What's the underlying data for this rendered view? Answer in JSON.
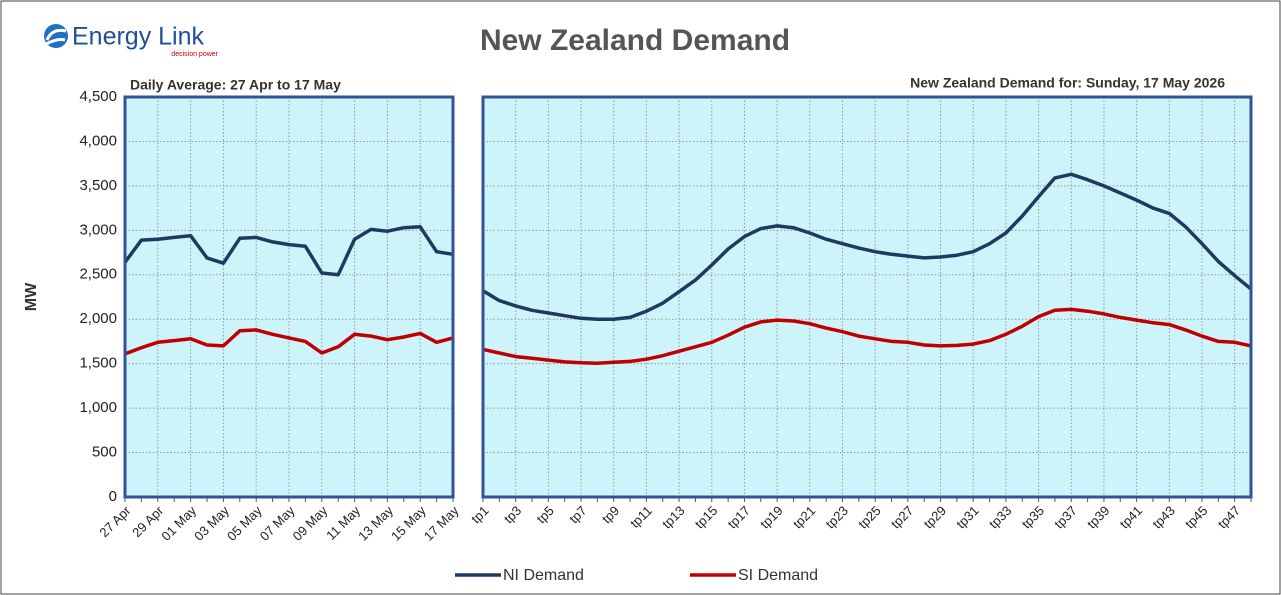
{
  "header": {
    "logo": "Energy Link",
    "tagline": "decision power",
    "title": "New Zealand Demand"
  },
  "chart_data": [
    {
      "type": "line",
      "subtitle": "Daily Average: 27 Apr to 17 May",
      "y_label": "MW",
      "categories": [
        "27 Apr",
        null,
        "29 Apr",
        null,
        "01 May",
        null,
        "03 May",
        null,
        "05 May",
        null,
        "07 May",
        null,
        "09 May",
        null,
        "11 May",
        null,
        "13 May",
        null,
        "15 May",
        null,
        "17 May"
      ],
      "series": [
        {
          "name": "NI Demand",
          "color": "#1f3a5f",
          "values": [
            2640,
            2890,
            2900,
            2920,
            2940,
            2690,
            2630,
            2910,
            2920,
            2870,
            2840,
            2820,
            2520,
            2500,
            2900,
            3010,
            2990,
            3030,
            3040,
            2760,
            2730
          ]
        },
        {
          "name": "SI Demand",
          "color": "#c00000",
          "values": [
            1610,
            1680,
            1740,
            1760,
            1780,
            1710,
            1700,
            1870,
            1880,
            1830,
            1790,
            1750,
            1620,
            1690,
            1830,
            1810,
            1770,
            1800,
            1840,
            1740,
            1790
          ]
        }
      ],
      "ylim": [
        0,
        4500
      ],
      "yticks": [
        0,
        500,
        {
          "value": 1000,
          "label": "1,000"
        },
        {
          "value": 1500,
          "label": "1,500"
        },
        {
          "value": 2000,
          "label": "2,000"
        },
        {
          "value": 2500,
          "label": "2,500"
        },
        {
          "value": 3000,
          "label": "3,000"
        },
        {
          "value": 3500,
          "label": "3,500"
        },
        {
          "value": 4000,
          "label": "4,000"
        },
        {
          "value": 4500,
          "label": "4,500"
        }
      ],
      "grid": true
    },
    {
      "type": "line",
      "subtitle": "New Zealand Demand for: Sunday, 17 May 2026",
      "categories": [
        "tp1",
        null,
        "tp3",
        null,
        "tp5",
        null,
        "tp7",
        null,
        "tp9",
        null,
        "tp11",
        null,
        "tp13",
        null,
        "tp15",
        null,
        "tp17",
        null,
        "tp19",
        null,
        "tp21",
        null,
        "tp23",
        null,
        "tp25",
        null,
        "tp27",
        null,
        "tp29",
        null,
        "tp31",
        null,
        "tp33",
        null,
        "tp35",
        null,
        "tp37",
        null,
        "tp39",
        null,
        "tp41",
        null,
        "tp43",
        null,
        "tp45",
        null,
        "tp47",
        null
      ],
      "series": [
        {
          "color": "#1f3a5f",
          "values": [
            2320,
            2210,
            2150,
            2100,
            2070,
            2040,
            2010,
            2000,
            2000,
            2020,
            2090,
            2180,
            2310,
            2440,
            2610,
            2790,
            2930,
            3020,
            3050,
            3030,
            2970,
            2900,
            2850,
            2800,
            2760,
            2730,
            2710,
            2690,
            2700,
            2720,
            2760,
            2850,
            2970,
            3160,
            3380,
            3590,
            3630,
            3570,
            3500,
            3420,
            3340,
            3250,
            3190,
            3040,
            2850,
            2650,
            2490,
            2340
          ]
        },
        {
          "color": "#c00000",
          "values": [
            1660,
            1620,
            1580,
            1560,
            1540,
            1520,
            1510,
            1505,
            1515,
            1525,
            1550,
            1590,
            1640,
            1690,
            1740,
            1820,
            1910,
            1970,
            1990,
            1980,
            1950,
            1900,
            1860,
            1810,
            1780,
            1750,
            1740,
            1710,
            1700,
            1705,
            1720,
            1760,
            1830,
            1920,
            2030,
            2100,
            2110,
            2090,
            2060,
            2020,
            1990,
            1960,
            1940,
            1880,
            1810,
            1750,
            1740,
            1700
          ]
        }
      ],
      "ylim": [
        0,
        4500
      ],
      "yticks": [
        0,
        500,
        {
          "value": 1000,
          "label": "1,000"
        },
        {
          "value": 1500,
          "label": "1,500"
        },
        {
          "value": 2000,
          "label": "2,000"
        },
        {
          "value": 2500,
          "label": "2,500"
        },
        {
          "value": 3000,
          "label": "3,000"
        },
        {
          "value": 3500,
          "label": "3,500"
        },
        {
          "value": 4000,
          "label": "4,000"
        },
        {
          "value": 4500,
          "label": "4,500"
        }
      ],
      "grid": true
    }
  ]
}
